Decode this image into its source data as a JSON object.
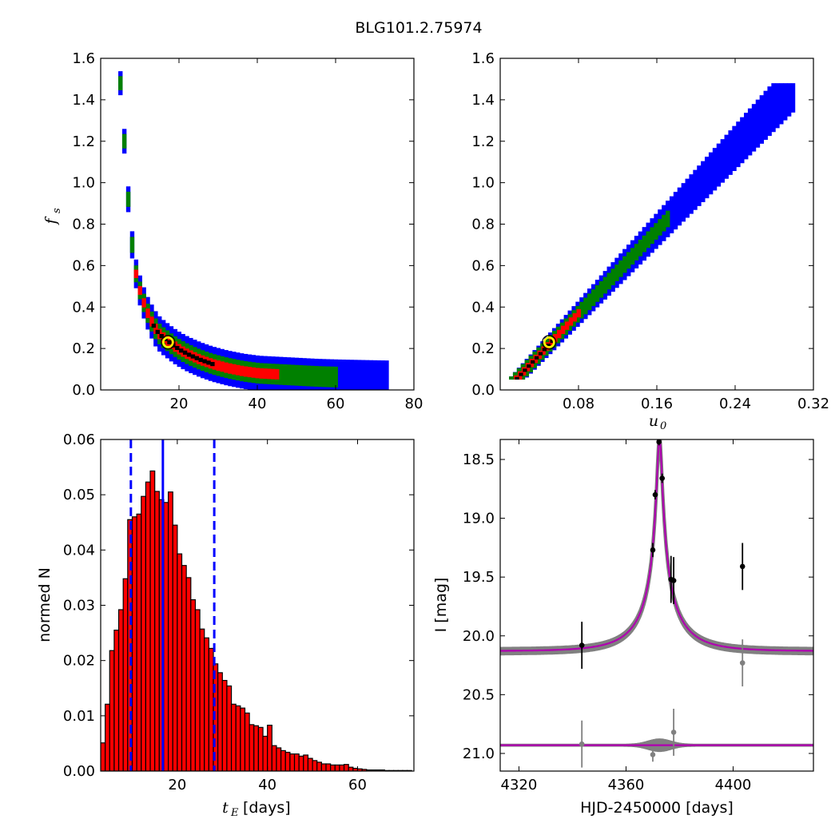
{
  "figure_title": "BLG101.2.75974",
  "colors": {
    "outer": "#0000ff",
    "mid": "#008000",
    "inner": "#ff0000",
    "core": "#000000",
    "bar": "#ff0000",
    "model": "#b000b0",
    "points": "#808080"
  },
  "chart_data": [
    {
      "type": "heatmap",
      "panel": "top-left",
      "xlabel_sym": "",
      "ylabel_sym": "f",
      "ylabel_sub": "s",
      "xlim": [
        0,
        80
      ],
      "ylim": [
        0.0,
        1.6
      ],
      "xticks": [
        20,
        40,
        60,
        80
      ],
      "yticks": [
        0.0,
        0.2,
        0.4,
        0.6,
        0.8,
        1.0,
        1.2,
        1.4,
        1.6
      ],
      "curve_points": [
        [
          4.5,
          1.48
        ],
        [
          5,
          1.35
        ],
        [
          5.5,
          1.2
        ],
        [
          6,
          1.05
        ],
        [
          6.5,
          0.92
        ],
        [
          7,
          0.8
        ],
        [
          7.5,
          0.7
        ],
        [
          8,
          0.62
        ],
        [
          8.5,
          0.56
        ],
        [
          9,
          0.51
        ],
        [
          10,
          0.45
        ],
        [
          11,
          0.39
        ],
        [
          12,
          0.35
        ],
        [
          13,
          0.31
        ],
        [
          14,
          0.28
        ],
        [
          15,
          0.26
        ],
        [
          16,
          0.245
        ],
        [
          18,
          0.215
        ],
        [
          20,
          0.19
        ],
        [
          22,
          0.17
        ],
        [
          25,
          0.145
        ],
        [
          28,
          0.125
        ],
        [
          32,
          0.105
        ],
        [
          36,
          0.09
        ],
        [
          40,
          0.08
        ],
        [
          45,
          0.075
        ],
        [
          50,
          0.07
        ],
        [
          55,
          0.065
        ],
        [
          60,
          0.062
        ],
        [
          65,
          0.06
        ],
        [
          70,
          0.058
        ],
        [
          73,
          0.057
        ]
      ],
      "levels": [
        {
          "color": "outer",
          "x_range": [
            4.5,
            73
          ],
          "width": 0.085
        },
        {
          "color": "mid",
          "x_range": [
            4.5,
            60
          ],
          "width": 0.05
        },
        {
          "color": "inner",
          "x_range": [
            8.5,
            45
          ],
          "width": 0.025
        },
        {
          "color": "core",
          "x_range": [
            13,
            28
          ],
          "width": 0.01
        }
      ],
      "best_fit": [
        17.2,
        0.23
      ]
    },
    {
      "type": "heatmap",
      "panel": "top-right",
      "xlabel_sym": "u",
      "xlabel_sub": "0",
      "xlim": [
        0.0,
        0.32
      ],
      "ylim": [
        0.0,
        1.6
      ],
      "xticks": [
        "0.08",
        "0.16",
        "0.24",
        "0.32"
      ],
      "xtick_values": [
        0.08,
        0.16,
        0.24,
        0.32
      ],
      "yticks": [
        0.0,
        0.2,
        0.4,
        0.6,
        0.8,
        1.0,
        1.2,
        1.4,
        1.6
      ],
      "line": {
        "slope": 5.0,
        "intercept": -0.02
      },
      "levels": [
        {
          "color": "outer",
          "u_range": [
            0.005,
            0.3
          ],
          "width": 0.075
        },
        {
          "color": "mid",
          "u_range": [
            0.005,
            0.17
          ],
          "width": 0.04
        },
        {
          "color": "inner",
          "u_range": [
            0.01,
            0.082
          ],
          "width": 0.02
        },
        {
          "color": "core",
          "u_range": [
            0.015,
            0.055
          ],
          "width": 0.008
        }
      ],
      "best_fit": [
        0.05,
        0.23
      ]
    },
    {
      "type": "bar",
      "panel": "bottom-left",
      "xlabel_sym": "t",
      "xlabel_sub": "E",
      "xlabel_unit": "[days]",
      "ylabel": "normed N",
      "xlim": [
        3,
        72.5
      ],
      "ylim": [
        0.0,
        0.06
      ],
      "xticks": [
        20,
        40,
        60
      ],
      "yticks": [
        "0.00",
        "0.01",
        "0.02",
        "0.03",
        "0.04",
        "0.05",
        "0.06"
      ],
      "ytick_values": [
        0.0,
        0.01,
        0.02,
        0.03,
        0.04,
        0.05,
        0.06
      ],
      "bin_start": 3,
      "bin_width": 1,
      "values": [
        0.0051,
        0.0121,
        0.0218,
        0.0255,
        0.0292,
        0.0348,
        0.0455,
        0.046,
        0.0465,
        0.0497,
        0.0523,
        0.0543,
        0.0506,
        0.0491,
        0.0486,
        0.0505,
        0.0445,
        0.0393,
        0.0372,
        0.035,
        0.031,
        0.0292,
        0.0257,
        0.0241,
        0.0222,
        0.0194,
        0.0178,
        0.0164,
        0.0154,
        0.0121,
        0.0118,
        0.0114,
        0.0105,
        0.0084,
        0.0082,
        0.0079,
        0.0063,
        0.0083,
        0.0046,
        0.0042,
        0.0037,
        0.0034,
        0.0031,
        0.0031,
        0.0027,
        0.0029,
        0.0023,
        0.0019,
        0.0016,
        0.0013,
        0.0013,
        0.0011,
        0.0011,
        0.0011,
        0.0012,
        0.0007,
        0.0005,
        0.0004,
        0.0003,
        0.0002,
        0.0002,
        0.0002,
        0.0002,
        0.0001,
        0.0001,
        0.0001,
        0.0001,
        0.0001,
        0.0001
      ],
      "median": 16.8,
      "lower": 9.7,
      "upper": 28.2
    },
    {
      "type": "line",
      "panel": "bottom-right",
      "xlabel": "HJD-2450000 [days]",
      "ylabel": "I [mag]",
      "xlim": [
        4313,
        4430
      ],
      "ylim": [
        21.15,
        18.33
      ],
      "xticks": [
        4320,
        4360,
        4400
      ],
      "yticks": [
        "18.5",
        "19.0",
        "19.5",
        "20.0",
        "20.5",
        "21.0"
      ],
      "ytick_values": [
        18.5,
        19.0,
        19.5,
        20.0,
        20.5,
        21.0
      ],
      "model": {
        "t0": 4372.5,
        "tE": 17.2,
        "u0": 0.05,
        "fs": 0.23,
        "baseline": 20.13
      },
      "residual_baseline": 20.93,
      "data_points": [
        {
          "x": 4343.5,
          "y": 20.08,
          "err": 0.2
        },
        {
          "x": 4370.0,
          "y": 19.27,
          "err": 0.06
        },
        {
          "x": 4370.9,
          "y": 18.8,
          "err": 0.04
        },
        {
          "x": 4372.3,
          "y": 18.35,
          "err": 0.03
        },
        {
          "x": 4373.5,
          "y": 18.66,
          "err": 0.04
        },
        {
          "x": 4376.8,
          "y": 19.52,
          "err": 0.2
        },
        {
          "x": 4377.8,
          "y": 19.53,
          "err": 0.2
        },
        {
          "x": 4403.5,
          "y": 19.41,
          "err": 0.2
        }
      ],
      "grey_points": [
        {
          "x": 4403.5,
          "y": 20.23,
          "err": 0.2
        },
        {
          "x": 4343.5,
          "y": 20.92,
          "err": 0.2
        },
        {
          "x": 4377.8,
          "y": 20.82,
          "err": 0.2
        },
        {
          "x": 4370.0,
          "y": 21.01,
          "err": 0.06
        }
      ]
    }
  ]
}
